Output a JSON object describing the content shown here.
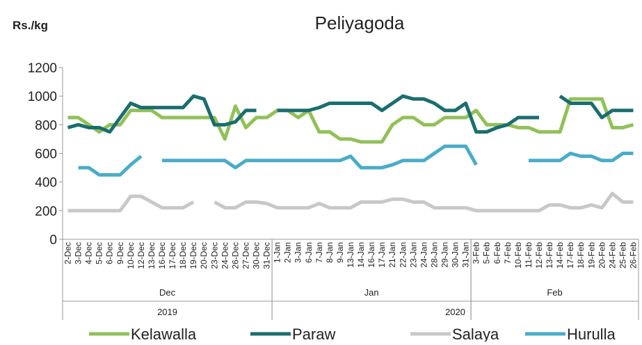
{
  "chart_data": {
    "type": "line",
    "title": "Peliyagoda",
    "y_label": "Rs./kg",
    "categories": [
      "2-Dec",
      "3-Dec",
      "4-Dec",
      "5-Dec",
      "6-Dec",
      "9-Dec",
      "10-Dec",
      "12-Dec",
      "13-Dec",
      "16-Dec",
      "17-Dec",
      "18-Dec",
      "19-Dec",
      "20-Dec",
      "23-Dec",
      "24-Dec",
      "26-Dec",
      "27-Dec",
      "30-Dec",
      "31-Dec",
      "1-Jan",
      "2-Jan",
      "3-Jan",
      "6-Jan",
      "7-Jan",
      "8-Jan",
      "9-Jan",
      "13-Jan",
      "14-Jan",
      "16-Jan",
      "17-Jan",
      "21-Jan",
      "22-Jan",
      "23-Jan",
      "24-Jan",
      "28-Jan",
      "29-Jan",
      "30-Jan",
      "31-Jan",
      "3-Feb",
      "5-Feb",
      "6-Feb",
      "7-Feb",
      "10-Feb",
      "11-Feb",
      "12-Feb",
      "13-Feb",
      "14-Feb",
      "17-Feb",
      "18-Feb",
      "19-Feb",
      "20-Feb",
      "24-Feb",
      "25-Feb",
      "26-Feb"
    ],
    "month_groups": [
      "Dec",
      "Jan",
      "Feb"
    ],
    "year_groups": [
      "2019",
      "2020"
    ],
    "series": [
      {
        "name": "Kelawalla",
        "color": "#92c05a",
        "values": [
          850,
          850,
          800,
          750,
          800,
          800,
          900,
          900,
          900,
          850,
          850,
          850,
          850,
          850,
          850,
          700,
          930,
          780,
          850,
          850,
          900,
          900,
          850,
          900,
          750,
          750,
          700,
          700,
          680,
          680,
          680,
          800,
          850,
          850,
          800,
          800,
          850,
          850,
          850,
          900,
          800,
          800,
          800,
          780,
          780,
          750,
          750,
          750,
          980,
          980,
          980,
          980,
          780,
          780,
          800
        ]
      },
      {
        "name": "Paraw",
        "color": "#1b6e6e",
        "values": [
          780,
          800,
          780,
          780,
          750,
          850,
          950,
          920,
          920,
          920,
          920,
          920,
          1000,
          980,
          800,
          800,
          820,
          900,
          900,
          null,
          900,
          900,
          900,
          900,
          920,
          950,
          950,
          950,
          950,
          950,
          900,
          950,
          1000,
          980,
          980,
          950,
          900,
          900,
          950,
          750,
          750,
          780,
          800,
          850,
          850,
          850,
          null,
          1000,
          950,
          950,
          950,
          850,
          900,
          900,
          900
        ]
      },
      {
        "name": "Salaya",
        "color": "#c8c8c8",
        "values": [
          200,
          200,
          200,
          200,
          200,
          200,
          300,
          300,
          260,
          220,
          220,
          220,
          260,
          null,
          260,
          220,
          220,
          260,
          260,
          250,
          220,
          220,
          220,
          220,
          250,
          220,
          220,
          220,
          260,
          260,
          260,
          280,
          280,
          260,
          260,
          220,
          220,
          220,
          220,
          200,
          200,
          200,
          200,
          200,
          200,
          200,
          240,
          240,
          220,
          220,
          240,
          220,
          320,
          260,
          260
        ]
      },
      {
        "name": "Hurulla",
        "color": "#4bacc6",
        "values": [
          null,
          500,
          500,
          450,
          450,
          450,
          520,
          580,
          null,
          550,
          550,
          550,
          550,
          550,
          550,
          550,
          500,
          550,
          550,
          550,
          550,
          550,
          550,
          550,
          550,
          550,
          550,
          580,
          500,
          500,
          500,
          520,
          550,
          550,
          550,
          600,
          650,
          650,
          650,
          520,
          null,
          null,
          null,
          null,
          550,
          550,
          550,
          550,
          600,
          580,
          580,
          550,
          550,
          600,
          600
        ]
      }
    ],
    "ylim": [
      0,
      1200
    ],
    "yticks": [
      0,
      200,
      400,
      600,
      800,
      1000,
      1200
    ],
    "legend": "bottom"
  }
}
